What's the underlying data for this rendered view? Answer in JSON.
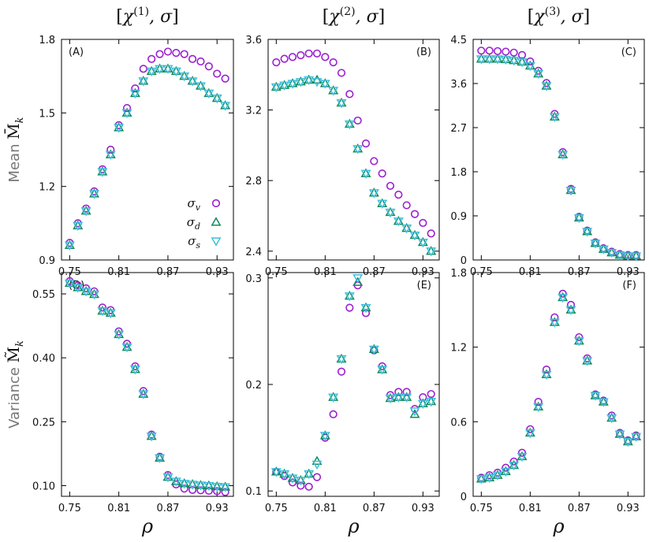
{
  "figure": {
    "column_titles": [
      "[χ(1), σ]",
      "[χ(2), σ]",
      "[χ(3), σ]"
    ],
    "column_title_parts": [
      {
        "base": "χ",
        "sup": "(1)",
        "rest": ", σ"
      },
      {
        "base": "χ",
        "sup": "(2)",
        "rest": ", σ"
      },
      {
        "base": "χ",
        "sup": "(3)",
        "rest": ", σ"
      }
    ],
    "row_labels": [
      {
        "word": "Mean",
        "symbol": "M̄",
        "sub": "k"
      },
      {
        "word": "Variance",
        "symbol": "M̃",
        "sub": "k"
      }
    ],
    "xlabel": "ρ",
    "legend": [
      {
        "name": "σv",
        "base": "σ",
        "sub": "v",
        "marker": "circle",
        "color": "#9b1fd1"
      },
      {
        "name": "σd",
        "base": "σ",
        "sub": "d",
        "marker": "triangle-up",
        "color": "#0f8a5a"
      },
      {
        "name": "σs",
        "base": "σ",
        "sub": "s",
        "marker": "triangle-down",
        "color": "#3fbfdc"
      }
    ]
  },
  "chart_data": [
    {
      "type": "scatter",
      "label": "(A)",
      "row": 0,
      "col": 0,
      "xlim": [
        0.74,
        0.95
      ],
      "ylim": [
        0.9,
        1.8
      ],
      "xticks": [
        0.75,
        0.81,
        0.87,
        0.93
      ],
      "yticks": [
        0.9,
        1.2,
        1.5,
        1.8
      ],
      "ytick_labels": [
        "0.9",
        "1.2",
        "1.5",
        "1.8"
      ],
      "show_legend": true,
      "x": [
        0.75,
        0.76,
        0.77,
        0.78,
        0.79,
        0.8,
        0.81,
        0.82,
        0.83,
        0.84,
        0.85,
        0.86,
        0.87,
        0.88,
        0.89,
        0.9,
        0.91,
        0.92,
        0.93,
        0.94
      ],
      "series": [
        {
          "name": "σv",
          "values": [
            0.97,
            1.05,
            1.11,
            1.18,
            1.27,
            1.35,
            1.45,
            1.52,
            1.6,
            1.68,
            1.72,
            1.74,
            1.75,
            1.745,
            1.74,
            1.72,
            1.71,
            1.69,
            1.66,
            1.64
          ]
        },
        {
          "name": "σd",
          "values": [
            0.96,
            1.04,
            1.1,
            1.17,
            1.26,
            1.33,
            1.44,
            1.5,
            1.58,
            1.63,
            1.67,
            1.68,
            1.68,
            1.67,
            1.65,
            1.63,
            1.61,
            1.58,
            1.56,
            1.53
          ]
        },
        {
          "name": "σs",
          "values": [
            0.96,
            1.04,
            1.1,
            1.17,
            1.26,
            1.33,
            1.44,
            1.5,
            1.58,
            1.63,
            1.67,
            1.68,
            1.68,
            1.67,
            1.65,
            1.63,
            1.61,
            1.58,
            1.56,
            1.53
          ]
        }
      ]
    },
    {
      "type": "scatter",
      "label": "(B)",
      "row": 0,
      "col": 1,
      "xlim": [
        0.74,
        0.95
      ],
      "ylim": [
        2.35,
        3.6
      ],
      "xticks": [
        0.75,
        0.81,
        0.87,
        0.93
      ],
      "yticks": [
        2.4,
        2.8,
        3.2,
        3.6
      ],
      "ytick_labels": [
        "2.4",
        "2.8",
        "3.2",
        "3.6"
      ],
      "x": [
        0.75,
        0.76,
        0.77,
        0.78,
        0.79,
        0.8,
        0.81,
        0.82,
        0.83,
        0.84,
        0.85,
        0.86,
        0.87,
        0.88,
        0.89,
        0.9,
        0.91,
        0.92,
        0.93,
        0.94
      ],
      "series": [
        {
          "name": "σv",
          "values": [
            3.47,
            3.49,
            3.5,
            3.51,
            3.52,
            3.52,
            3.5,
            3.47,
            3.41,
            3.29,
            3.14,
            3.01,
            2.91,
            2.84,
            2.77,
            2.72,
            2.66,
            2.61,
            2.56,
            2.5
          ]
        },
        {
          "name": "σd",
          "values": [
            3.33,
            3.34,
            3.35,
            3.36,
            3.37,
            3.37,
            3.35,
            3.31,
            3.24,
            3.12,
            2.98,
            2.84,
            2.73,
            2.67,
            2.62,
            2.57,
            2.53,
            2.49,
            2.45,
            2.4
          ]
        },
        {
          "name": "σs",
          "values": [
            3.33,
            3.34,
            3.35,
            3.36,
            3.37,
            3.36,
            3.35,
            3.31,
            3.24,
            3.12,
            2.98,
            2.84,
            2.73,
            2.67,
            2.62,
            2.57,
            2.53,
            2.49,
            2.45,
            2.4
          ]
        }
      ]
    },
    {
      "type": "scatter",
      "label": "(C)",
      "row": 0,
      "col": 2,
      "xlim": [
        0.74,
        0.95
      ],
      "ylim": [
        0,
        4.5
      ],
      "xticks": [
        0.75,
        0.81,
        0.87,
        0.93
      ],
      "yticks": [
        0,
        0.9,
        1.8,
        2.7,
        3.6,
        4.5
      ],
      "ytick_labels": [
        "0",
        "0.9",
        "1.8",
        "2.7",
        "3.6",
        "4.5"
      ],
      "x": [
        0.75,
        0.76,
        0.77,
        0.78,
        0.79,
        0.8,
        0.81,
        0.82,
        0.83,
        0.84,
        0.85,
        0.86,
        0.87,
        0.88,
        0.89,
        0.9,
        0.91,
        0.92,
        0.93,
        0.94
      ],
      "series": [
        {
          "name": "σv",
          "values": [
            4.27,
            4.27,
            4.26,
            4.25,
            4.23,
            4.18,
            4.05,
            3.86,
            3.61,
            2.98,
            2.2,
            1.45,
            0.88,
            0.6,
            0.36,
            0.24,
            0.17,
            0.12,
            0.1,
            0.1
          ]
        },
        {
          "name": "σd",
          "values": [
            4.1,
            4.1,
            4.1,
            4.09,
            4.07,
            4.04,
            3.96,
            3.8,
            3.55,
            2.92,
            2.15,
            1.42,
            0.86,
            0.58,
            0.34,
            0.22,
            0.15,
            0.1,
            0.08,
            0.08
          ]
        },
        {
          "name": "σs",
          "values": [
            4.1,
            4.1,
            4.1,
            4.09,
            4.07,
            4.04,
            3.96,
            3.8,
            3.55,
            2.92,
            2.15,
            1.42,
            0.86,
            0.58,
            0.34,
            0.22,
            0.15,
            0.1,
            0.08,
            0.08
          ]
        }
      ]
    },
    {
      "type": "scatter",
      "label": "(D)",
      "row": 1,
      "col": 0,
      "xlim": [
        0.74,
        0.95
      ],
      "ylim": [
        0.075,
        0.6
      ],
      "xticks": [
        0.75,
        0.81,
        0.87,
        0.93
      ],
      "yticks": [
        0.1,
        0.25,
        0.4,
        0.55
      ],
      "ytick_labels": [
        "0.10",
        "0.25",
        "0.40",
        "0.55"
      ],
      "x": [
        0.75,
        0.76,
        0.77,
        0.78,
        0.79,
        0.8,
        0.81,
        0.82,
        0.83,
        0.84,
        0.85,
        0.86,
        0.87,
        0.88,
        0.89,
        0.9,
        0.91,
        0.92,
        0.93,
        0.94
      ],
      "series": [
        {
          "name": "σv",
          "values": [
            0.58,
            0.57,
            0.563,
            0.556,
            0.518,
            0.512,
            0.462,
            0.433,
            0.38,
            0.322,
            0.22,
            0.168,
            0.125,
            0.103,
            0.093,
            0.09,
            0.089,
            0.088,
            0.087,
            0.085
          ]
        },
        {
          "name": "σd",
          "values": [
            0.575,
            0.565,
            0.556,
            0.549,
            0.51,
            0.505,
            0.455,
            0.425,
            0.373,
            0.315,
            0.216,
            0.165,
            0.12,
            0.11,
            0.105,
            0.103,
            0.101,
            0.1,
            0.098,
            0.097
          ]
        },
        {
          "name": "σs",
          "values": [
            0.575,
            0.565,
            0.556,
            0.549,
            0.51,
            0.505,
            0.455,
            0.425,
            0.373,
            0.315,
            0.216,
            0.165,
            0.12,
            0.11,
            0.105,
            0.103,
            0.101,
            0.1,
            0.098,
            0.097
          ]
        }
      ]
    },
    {
      "type": "scatter",
      "label": "(E)",
      "row": 1,
      "col": 1,
      "xlim": [
        0.74,
        0.95
      ],
      "ylim": [
        0.095,
        0.305
      ],
      "xticks": [
        0.75,
        0.81,
        0.87,
        0.93
      ],
      "yticks": [
        0.1,
        0.2,
        0.3
      ],
      "ytick_labels": [
        "0.1",
        "0.2",
        "0.3"
      ],
      "x": [
        0.75,
        0.76,
        0.77,
        0.78,
        0.79,
        0.8,
        0.81,
        0.82,
        0.83,
        0.84,
        0.85,
        0.86,
        0.87,
        0.88,
        0.89,
        0.9,
        0.91,
        0.92,
        0.93,
        0.94
      ],
      "series": [
        {
          "name": "σv",
          "values": [
            0.118,
            0.114,
            0.108,
            0.105,
            0.104,
            0.113,
            0.15,
            0.172,
            0.212,
            0.272,
            0.293,
            0.267,
            0.232,
            0.217,
            0.19,
            0.193,
            0.193,
            0.177,
            0.188,
            0.191
          ]
        },
        {
          "name": "σd",
          "values": [
            0.118,
            0.116,
            0.112,
            0.11,
            0.116,
            0.128,
            0.152,
            0.188,
            0.224,
            0.283,
            0.296,
            0.272,
            0.233,
            0.214,
            0.187,
            0.188,
            0.188,
            0.172,
            0.182,
            0.184
          ]
        },
        {
          "name": "σs",
          "values": [
            0.118,
            0.116,
            0.112,
            0.11,
            0.116,
            0.125,
            0.152,
            0.188,
            0.224,
            0.283,
            0.3,
            0.272,
            0.233,
            0.214,
            0.187,
            0.188,
            0.188,
            0.175,
            0.182,
            0.184
          ]
        }
      ]
    },
    {
      "type": "scatter",
      "label": "(F)",
      "row": 1,
      "col": 2,
      "xlim": [
        0.74,
        0.95
      ],
      "ylim": [
        0,
        1.8
      ],
      "xticks": [
        0.75,
        0.81,
        0.87,
        0.93
      ],
      "yticks": [
        0,
        0.6,
        1.2,
        1.8
      ],
      "ytick_labels": [
        "0",
        "0.6",
        "1.2",
        "1.8"
      ],
      "x": [
        0.75,
        0.76,
        0.77,
        0.78,
        0.79,
        0.8,
        0.81,
        0.82,
        0.83,
        0.84,
        0.85,
        0.86,
        0.87,
        0.88,
        0.89,
        0.9,
        0.91,
        0.92,
        0.93,
        0.94
      ],
      "series": [
        {
          "name": "σv",
          "values": [
            0.15,
            0.17,
            0.19,
            0.23,
            0.28,
            0.35,
            0.54,
            0.76,
            1.02,
            1.44,
            1.63,
            1.54,
            1.28,
            1.11,
            0.82,
            0.77,
            0.65,
            0.51,
            0.45,
            0.49
          ]
        },
        {
          "name": "σd",
          "values": [
            0.14,
            0.15,
            0.17,
            0.2,
            0.25,
            0.32,
            0.51,
            0.72,
            0.98,
            1.4,
            1.6,
            1.5,
            1.25,
            1.09,
            0.81,
            0.76,
            0.63,
            0.5,
            0.44,
            0.48
          ]
        },
        {
          "name": "σs",
          "values": [
            0.14,
            0.15,
            0.17,
            0.2,
            0.25,
            0.32,
            0.51,
            0.72,
            0.98,
            1.4,
            1.6,
            1.5,
            1.25,
            1.09,
            0.81,
            0.76,
            0.63,
            0.5,
            0.44,
            0.48
          ]
        }
      ]
    }
  ]
}
